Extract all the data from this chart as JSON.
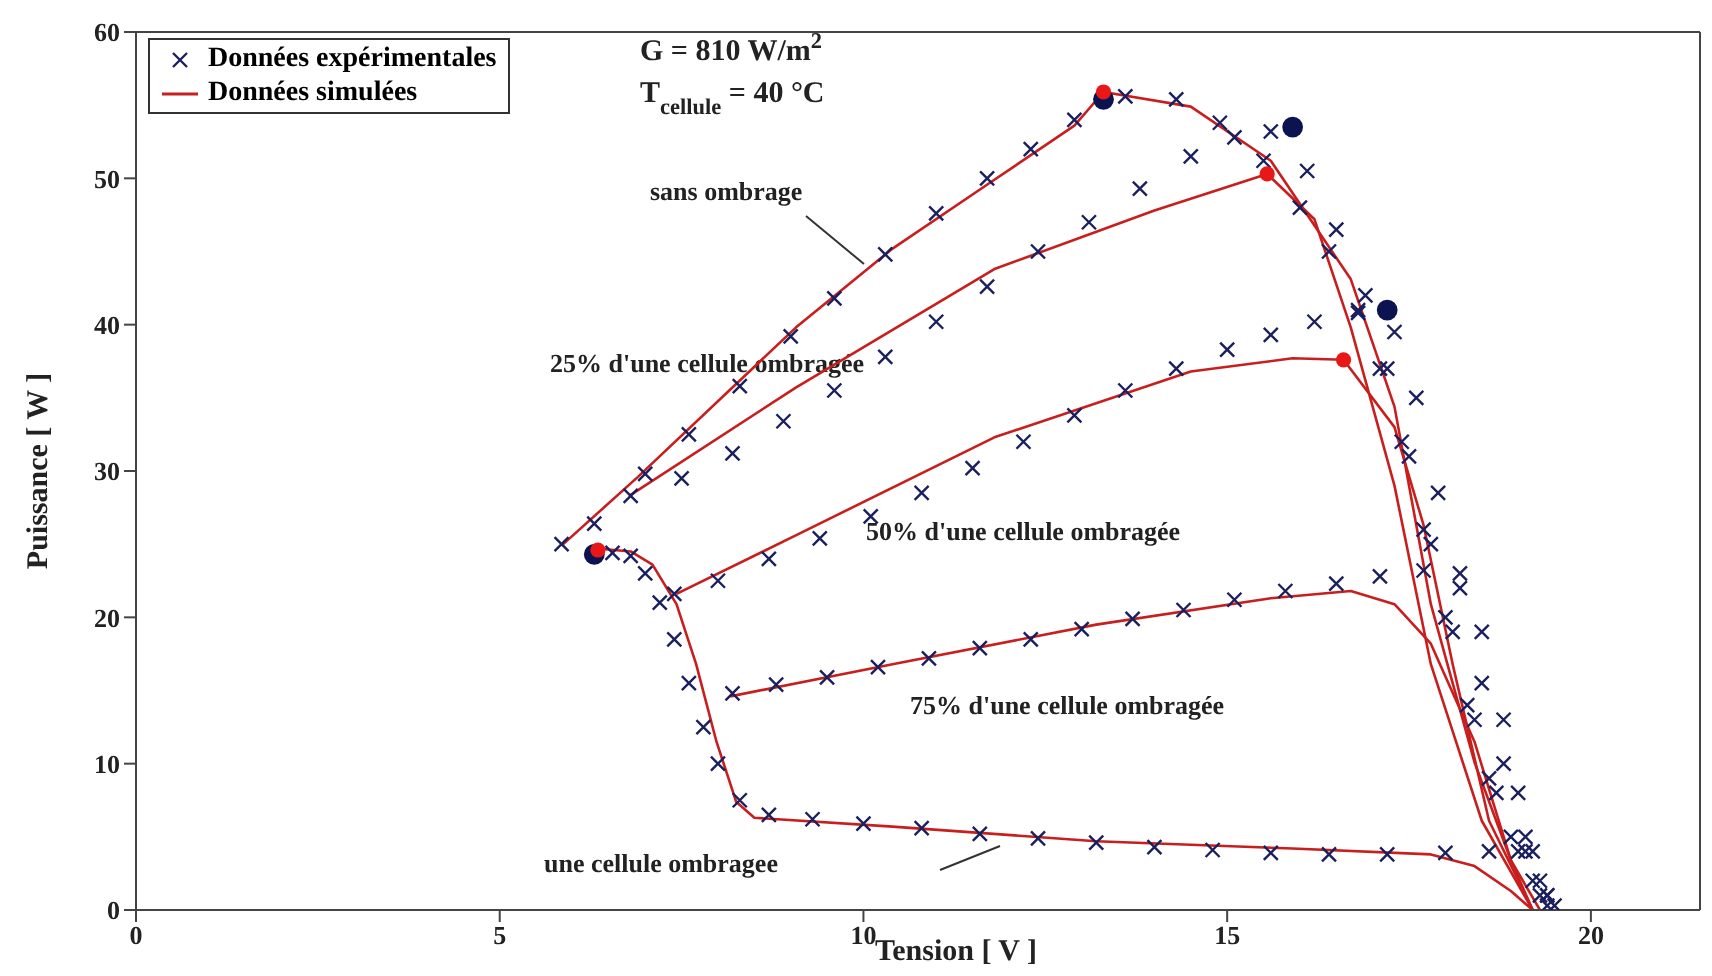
{
  "chart_data": {
    "type": "scatter",
    "xlabel": "Tension [ V ]",
    "ylabel": "Puissance [ W ]",
    "xlim": [
      0,
      21.5
    ],
    "xticks": [
      0,
      5,
      10,
      15,
      20
    ],
    "ylim": [
      0,
      60
    ],
    "yticks": [
      0,
      10,
      20,
      30,
      40,
      50,
      60
    ],
    "legend": "top left",
    "annotations": [
      "G = 810 W/m$^{2}$",
      "T$_{cellule}$ = 40 °C",
      "sans ombrage",
      "25% d'une cellule ombragée",
      "50% d'une cellule ombragée",
      "75% d'une cellule ombragée",
      "une cellule ombragee"
    ],
    "series": [
      {
        "name": "Données expérimentales",
        "marker": "cross",
        "color": "#1a1f5e",
        "x": [
          5.85,
          6.3,
          7.0,
          7.6,
          8.3,
          9.0,
          9.6,
          10.3,
          11.0,
          11.7,
          12.3,
          12.9,
          13.6,
          14.3,
          14.9,
          15.5,
          16.0,
          16.4,
          16.8,
          17.1,
          17.4,
          17.7,
          18.0,
          18.3,
          18.6,
          18.9,
          19.2,
          19.4,
          6.8,
          7.5,
          8.2,
          8.9,
          9.6,
          10.3,
          11.0,
          11.7,
          12.4,
          13.1,
          13.8,
          14.5,
          15.1,
          15.6,
          16.1,
          16.5,
          16.9,
          17.2,
          17.5,
          17.8,
          18.1,
          18.4,
          18.7,
          19.0,
          19.3,
          7.4,
          8.0,
          8.7,
          9.4,
          10.1,
          10.8,
          11.5,
          12.2,
          12.9,
          13.6,
          14.3,
          15.0,
          15.6,
          16.2,
          16.8,
          17.3,
          17.6,
          17.9,
          18.2,
          18.5,
          18.8,
          19.1,
          19.4,
          8.2,
          8.8,
          9.5,
          10.2,
          10.9,
          11.6,
          12.3,
          13.0,
          13.7,
          14.4,
          15.1,
          15.8,
          16.5,
          17.1,
          17.7,
          18.2,
          18.5,
          18.8,
          19.0,
          19.2,
          19.4,
          6.55,
          6.8,
          7.0,
          7.2,
          7.4,
          7.6,
          7.8,
          8.0,
          8.3,
          8.7,
          9.3,
          10.0,
          10.8,
          11.6,
          12.4,
          13.2,
          14.0,
          14.8,
          15.6,
          16.4,
          17.2,
          18.0,
          18.6,
          19.1,
          19.3,
          19.5
        ],
        "values": [
          25.0,
          26.4,
          29.8,
          32.5,
          35.8,
          39.2,
          41.8,
          44.8,
          47.6,
          50.0,
          52.0,
          54.0,
          55.6,
          55.4,
          53.8,
          51.2,
          48.0,
          45.0,
          41.0,
          37.0,
          32.0,
          26.0,
          20.0,
          14.0,
          9.0,
          5.0,
          2.0,
          0.3,
          28.3,
          29.5,
          31.2,
          33.4,
          35.5,
          37.8,
          40.2,
          42.6,
          45.0,
          47.0,
          49.3,
          51.5,
          52.8,
          53.2,
          50.5,
          46.5,
          42.0,
          37.0,
          31.0,
          25.0,
          19.0,
          13.0,
          8.0,
          4.0,
          1.0,
          21.6,
          22.5,
          24.0,
          25.4,
          26.9,
          28.5,
          30.2,
          32.0,
          33.8,
          35.5,
          37.0,
          38.3,
          39.3,
          40.2,
          40.8,
          39.5,
          35.0,
          28.5,
          22.0,
          15.5,
          10.0,
          5.0,
          1.0,
          14.8,
          15.4,
          15.9,
          16.6,
          17.2,
          17.9,
          18.5,
          19.2,
          19.9,
          20.5,
          21.2,
          21.8,
          22.3,
          22.8,
          23.2,
          23.0,
          19.0,
          13.0,
          8.0,
          4.0,
          1.0,
          24.4,
          24.2,
          23.0,
          21.0,
          18.5,
          15.5,
          12.5,
          10.0,
          7.5,
          6.5,
          6.2,
          5.9,
          5.6,
          5.2,
          4.9,
          4.6,
          4.3,
          4.1,
          3.9,
          3.8,
          3.8,
          3.9,
          4.0,
          4.0,
          2.0,
          0.3
        ]
      },
      {
        "name": "Données simulées",
        "type": "line",
        "marker": "none",
        "color": "#c81e1e",
        "x": [
          5.85,
          6.9,
          9.07,
          10.4,
          11.8,
          12.9,
          13.3,
          14.5,
          15.6,
          16.7,
          17.3,
          17.8,
          18.4,
          18.9,
          19.3
        ],
        "values": [
          24.9,
          29.6,
          39.8,
          45.2,
          49.9,
          53.6,
          55.9,
          54.9,
          51.2,
          43.1,
          34.4,
          20.9,
          10.1,
          3.4,
          0
        ]
      },
      {
        "type": "line",
        "marker": "none",
        "color": "#c81e1e",
        "x": [
          6.78,
          9.07,
          11.8,
          14.0,
          15.55,
          16.2,
          16.7,
          17.3,
          17.8,
          18.5,
          19.2
        ],
        "values": [
          28.3,
          35.7,
          43.8,
          47.8,
          50.3,
          47.2,
          39.8,
          29.0,
          16.8,
          6.1,
          0
        ]
      },
      {
        "type": "line",
        "marker": "none",
        "color": "#c81e1e",
        "x": [
          7.43,
          9.07,
          11.8,
          14.5,
          15.9,
          16.6,
          17.3,
          17.7,
          18.1,
          18.6,
          19.2
        ],
        "values": [
          21.6,
          25.6,
          32.3,
          36.8,
          37.7,
          37.6,
          33.0,
          26.3,
          16.8,
          6.1,
          0
        ]
      },
      {
        "type": "line",
        "marker": "none",
        "color": "#c81e1e",
        "x": [
          8.17,
          10.4,
          13.2,
          15.6,
          16.7,
          17.3,
          17.8,
          18.4,
          18.9,
          19.2
        ],
        "values": [
          14.6,
          16.8,
          19.5,
          21.3,
          21.8,
          20.9,
          18.2,
          11.5,
          3.4,
          0
        ]
      },
      {
        "type": "line",
        "marker": "none",
        "color": "#c81e1e",
        "x": [
          6.34,
          6.8,
          7.1,
          7.43,
          7.7,
          7.98,
          8.25,
          8.5,
          10.4,
          13.2,
          15.9,
          17.8,
          18.4,
          18.9,
          19.2
        ],
        "values": [
          24.7,
          24.5,
          23.6,
          20.9,
          16.8,
          11.5,
          7.4,
          6.3,
          5.7,
          4.7,
          4.2,
          3.8,
          3.0,
          1.3,
          0
        ]
      },
      {
        "type": "scatter",
        "marker": "circle",
        "color": "#0b1450",
        "x": [
          13.3,
          15.9,
          17.2,
          6.3
        ],
        "values": [
          55.4,
          53.5,
          41.0,
          24.3
        ]
      },
      {
        "type": "scatter",
        "marker": "circle",
        "color": "#e81818",
        "x": [
          13.3,
          15.55,
          16.6,
          6.35
        ],
        "values": [
          55.9,
          50.3,
          37.6,
          24.6
        ]
      }
    ]
  }
}
